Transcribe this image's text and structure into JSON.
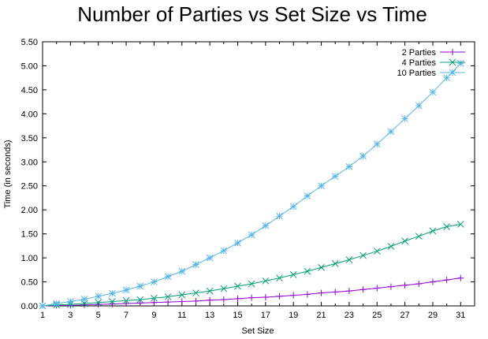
{
  "chart_data": {
    "type": "line",
    "title": "Number of Parties vs Set Size vs Time",
    "xlabel": "Set Size",
    "ylabel": "Time (in seconds)",
    "xlim": [
      1,
      32
    ],
    "ylim": [
      0,
      5.5
    ],
    "xticks": [
      1,
      3,
      5,
      7,
      9,
      11,
      13,
      15,
      17,
      19,
      21,
      23,
      25,
      27,
      29,
      31
    ],
    "yticks": [
      0,
      0.5,
      1,
      1.5,
      2,
      2.5,
      3,
      3.5,
      4,
      4.5,
      5,
      5.5
    ],
    "xtick_labels": [
      "1",
      "3",
      "5",
      "7",
      "9",
      "11",
      "13",
      "15",
      "17",
      "19",
      "21",
      "23",
      "25",
      "27",
      "29",
      "31"
    ],
    "ytick_labels": [
      "0.00",
      "0.50",
      "1.00",
      "1.50",
      "2.00",
      "2.50",
      "3.00",
      "3.50",
      "4.00",
      "4.50",
      "5.00",
      "5.50"
    ],
    "grid": false,
    "legend_position": "top-right",
    "x": [
      1,
      2,
      3,
      4,
      5,
      6,
      7,
      8,
      9,
      10,
      11,
      12,
      13,
      14,
      15,
      16,
      17,
      18,
      19,
      20,
      21,
      22,
      23,
      24,
      25,
      26,
      27,
      28,
      29,
      30,
      31
    ],
    "series": [
      {
        "name": "2 Parties",
        "color": "#9400d3",
        "marker": "plus",
        "values": [
          0.0,
          0.01,
          0.01,
          0.02,
          0.03,
          0.04,
          0.05,
          0.06,
          0.07,
          0.08,
          0.09,
          0.1,
          0.12,
          0.13,
          0.15,
          0.17,
          0.18,
          0.2,
          0.22,
          0.24,
          0.27,
          0.29,
          0.31,
          0.34,
          0.37,
          0.4,
          0.43,
          0.46,
          0.5,
          0.54,
          0.58
        ]
      },
      {
        "name": "4 Parties",
        "color": "#009e73",
        "marker": "cross",
        "values": [
          0.0,
          0.02,
          0.03,
          0.05,
          0.07,
          0.09,
          0.11,
          0.13,
          0.16,
          0.19,
          0.23,
          0.27,
          0.31,
          0.36,
          0.41,
          0.46,
          0.52,
          0.58,
          0.65,
          0.72,
          0.8,
          0.88,
          0.96,
          1.05,
          1.14,
          1.24,
          1.35,
          1.45,
          1.56,
          1.65,
          1.7
        ]
      },
      {
        "name": "10 Parties",
        "color": "#56b4e9",
        "marker": "star",
        "values": [
          0.0,
          0.05,
          0.09,
          0.14,
          0.2,
          0.26,
          0.33,
          0.41,
          0.5,
          0.61,
          0.72,
          0.86,
          1.0,
          1.15,
          1.31,
          1.48,
          1.67,
          1.87,
          2.07,
          2.29,
          2.5,
          2.7,
          2.9,
          3.12,
          3.37,
          3.63,
          3.9,
          4.17,
          4.45,
          4.75,
          5.05
        ]
      }
    ]
  }
}
